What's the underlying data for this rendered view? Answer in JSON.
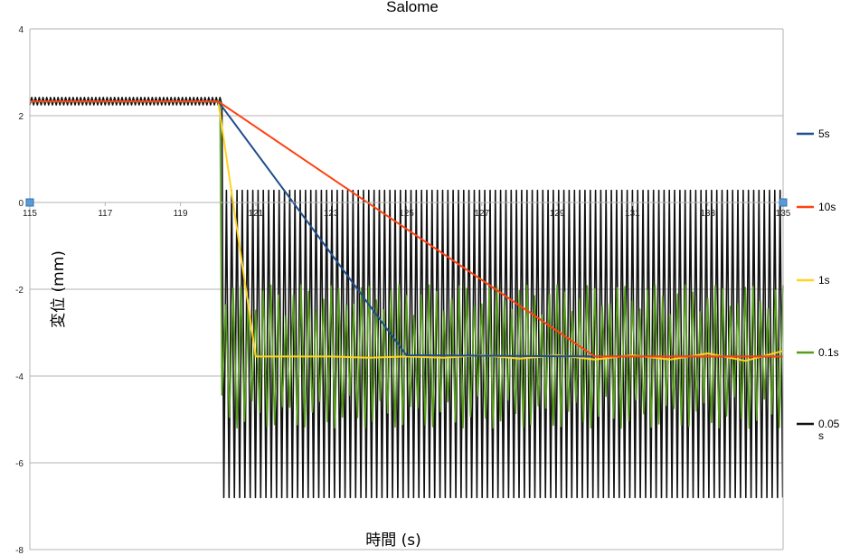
{
  "chart_data": {
    "type": "line",
    "title": "Salome",
    "xlabel": "時間 (s)",
    "ylabel": "変位 (mm)",
    "xlim": [
      115,
      135
    ],
    "ylim": [
      -8,
      4
    ],
    "x_ticks": [
      "115",
      "117",
      "119",
      "121",
      "123",
      "125",
      "127",
      "129",
      "131",
      "133",
      "135"
    ],
    "y_ticks": [
      "4",
      "2",
      "0",
      "-2",
      "-4",
      "-6",
      "-8"
    ],
    "grid": true,
    "legend_position": "right",
    "series": [
      {
        "name": "5s",
        "color": "#1f4e8c",
        "x": [
          115,
          120,
          125,
          130,
          135
        ],
        "y": [
          2.33,
          2.33,
          -3.52,
          -3.55,
          -3.55
        ]
      },
      {
        "name": "10s",
        "color": "#ff420e",
        "x": [
          115,
          120,
          130,
          135
        ],
        "y": [
          2.33,
          2.33,
          -3.55,
          -3.55
        ]
      },
      {
        "name": "1s",
        "color": "#ffd320",
        "x": [
          115,
          116,
          117,
          118,
          119,
          120,
          121,
          122,
          123,
          124,
          125,
          126,
          127,
          128,
          129,
          130,
          131,
          132,
          133,
          134,
          135
        ],
        "y": [
          2.33,
          2.33,
          2.33,
          2.33,
          2.33,
          2.33,
          -3.55,
          -3.55,
          -3.55,
          -3.58,
          -3.55,
          -3.58,
          -3.52,
          -3.6,
          -3.52,
          -3.62,
          -3.52,
          -3.62,
          -3.48,
          -3.65,
          -3.42
        ]
      },
      {
        "name": "0.1s",
        "color": "#579d1c",
        "description": "oscillation about -3.5 mm after step at 120 s",
        "x_start": 115,
        "x_end": 135,
        "step_time": 120.1,
        "before_level": 2.33,
        "after_center": -3.5,
        "after_range": [
          -5.2,
          -1.9
        ]
      },
      {
        "name": "0.05\ns",
        "color": "#111111",
        "description": "high-frequency oscillation after step",
        "x_start": 115,
        "x_end": 135,
        "step_time": 120.1,
        "before_range": [
          2.25,
          2.42
        ],
        "after_range": [
          -6.8,
          0.28
        ]
      }
    ]
  }
}
